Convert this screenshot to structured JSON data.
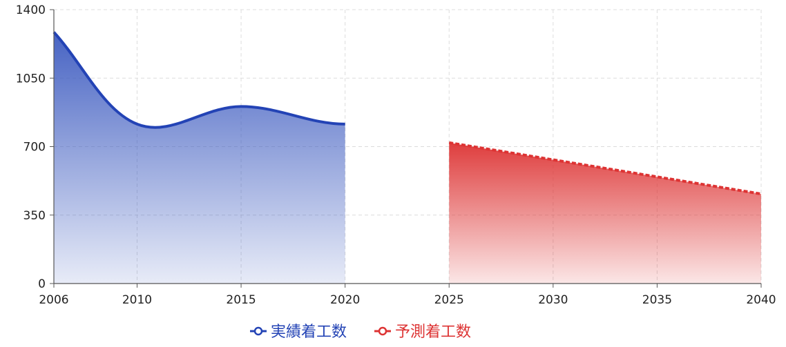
{
  "chart_data": {
    "type": "area",
    "x_ticks": [
      "2006",
      "2010",
      "2015",
      "2020",
      "2025",
      "2030",
      "2035",
      "2040"
    ],
    "y_ticks": [
      "0",
      "350",
      "700",
      "1050",
      "1400"
    ],
    "xlim": [
      2006,
      2040
    ],
    "ylim": [
      0,
      1400
    ],
    "grid": true,
    "legend_position": "bottom",
    "series": [
      {
        "name": "実績着工数",
        "color": "#2343b5",
        "line_style": "solid",
        "points": [
          [
            2006,
            1285
          ],
          [
            2010,
            815
          ],
          [
            2015,
            905
          ],
          [
            2020,
            815
          ]
        ]
      },
      {
        "name": "予測着工数",
        "color": "#dd3333",
        "line_style": "dotted",
        "points": [
          [
            2025,
            720
          ],
          [
            2040,
            458
          ]
        ]
      }
    ]
  }
}
